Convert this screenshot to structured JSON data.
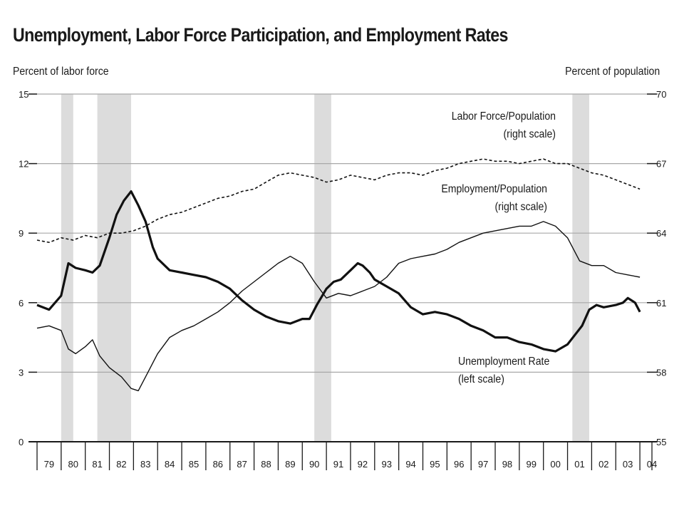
{
  "chart_data": {
    "type": "line",
    "title": "Unemployment, Labor Force Participation, and Employment Rates",
    "left_axis": {
      "label": "Percent of labor force",
      "range": [
        0,
        15
      ],
      "ticks": [
        0,
        3,
        6,
        9,
        12,
        15
      ]
    },
    "right_axis": {
      "label": "Percent of population",
      "range": [
        55,
        70
      ],
      "ticks": [
        55,
        58,
        61,
        64,
        67,
        70
      ]
    },
    "x_axis": {
      "range": [
        1979,
        2004.5
      ],
      "ticks": [
        "79",
        "80",
        "81",
        "82",
        "83",
        "84",
        "85",
        "86",
        "87",
        "88",
        "89",
        "90",
        "91",
        "92",
        "93",
        "94",
        "95",
        "96",
        "97",
        "98",
        "99",
        "00",
        "01",
        "02",
        "03",
        "04"
      ]
    },
    "grid": "horizontal",
    "recessions": [
      [
        1980.0,
        1980.5
      ],
      [
        1981.5,
        1982.9
      ],
      [
        1990.5,
        1991.2
      ],
      [
        2001.2,
        2001.9
      ]
    ],
    "annotations": [
      {
        "lines": [
          "Labor Force/Population",
          "(right scale)"
        ]
      },
      {
        "lines": [
          "Employment/Population",
          "(right scale)"
        ]
      },
      {
        "lines": [
          "Unemployment Rate",
          "(left scale)"
        ]
      }
    ],
    "series": [
      {
        "name": "Unemployment Rate",
        "axis": "left",
        "style": "thick",
        "x": [
          1979.0,
          1979.5,
          1980.0,
          1980.3,
          1980.6,
          1981.0,
          1981.3,
          1981.6,
          1982.0,
          1982.3,
          1982.6,
          1982.9,
          1983.2,
          1983.5,
          1983.8,
          1984.0,
          1984.5,
          1985.0,
          1985.5,
          1986.0,
          1986.5,
          1987.0,
          1987.5,
          1988.0,
          1988.5,
          1989.0,
          1989.5,
          1990.0,
          1990.3,
          1990.6,
          1991.0,
          1991.3,
          1991.6,
          1992.0,
          1992.3,
          1992.5,
          1992.8,
          1993.0,
          1993.5,
          1994.0,
          1994.5,
          1995.0,
          1995.5,
          1996.0,
          1996.5,
          1997.0,
          1997.5,
          1998.0,
          1998.5,
          1999.0,
          1999.5,
          2000.0,
          2000.5,
          2001.0,
          2001.3,
          2001.6,
          2001.9,
          2002.2,
          2002.5,
          2003.0,
          2003.3,
          2003.5,
          2003.8,
          2004.0
        ],
        "values": [
          5.9,
          5.7,
          6.3,
          7.7,
          7.5,
          7.4,
          7.3,
          7.6,
          8.8,
          9.8,
          10.4,
          10.8,
          10.2,
          9.5,
          8.4,
          7.9,
          7.4,
          7.3,
          7.2,
          7.1,
          6.9,
          6.6,
          6.1,
          5.7,
          5.4,
          5.2,
          5.1,
          5.3,
          5.3,
          5.9,
          6.6,
          6.9,
          7.0,
          7.4,
          7.7,
          7.6,
          7.3,
          7.0,
          6.7,
          6.4,
          5.8,
          5.5,
          5.6,
          5.5,
          5.3,
          5.0,
          4.8,
          4.5,
          4.5,
          4.3,
          4.2,
          4.0,
          3.9,
          4.2,
          4.6,
          5.0,
          5.7,
          5.9,
          5.8,
          5.9,
          6.0,
          6.2,
          6.0,
          5.6
        ]
      },
      {
        "name": "Labor Force/Population",
        "axis": "right",
        "style": "dashed",
        "x": [
          1979.0,
          1979.5,
          1980.0,
          1980.5,
          1981.0,
          1981.5,
          1982.0,
          1982.5,
          1983.0,
          1983.5,
          1984.0,
          1984.5,
          1985.0,
          1985.5,
          1986.0,
          1986.5,
          1987.0,
          1987.5,
          1988.0,
          1988.5,
          1989.0,
          1989.5,
          1990.0,
          1990.5,
          1991.0,
          1991.5,
          1992.0,
          1992.5,
          1993.0,
          1993.5,
          1994.0,
          1994.5,
          1995.0,
          1995.5,
          1996.0,
          1996.5,
          1997.0,
          1997.5,
          1998.0,
          1998.5,
          1999.0,
          1999.5,
          2000.0,
          2000.5,
          2001.0,
          2001.5,
          2002.0,
          2002.5,
          2003.0,
          2003.5,
          2004.0
        ],
        "values": [
          63.7,
          63.6,
          63.8,
          63.7,
          63.9,
          63.8,
          64.0,
          64.0,
          64.1,
          64.3,
          64.6,
          64.8,
          64.9,
          65.1,
          65.3,
          65.5,
          65.6,
          65.8,
          65.9,
          66.2,
          66.5,
          66.6,
          66.5,
          66.4,
          66.2,
          66.3,
          66.5,
          66.4,
          66.3,
          66.5,
          66.6,
          66.6,
          66.5,
          66.7,
          66.8,
          67.0,
          67.1,
          67.2,
          67.1,
          67.1,
          67.0,
          67.1,
          67.2,
          67.0,
          67.0,
          66.8,
          66.6,
          66.5,
          66.3,
          66.1,
          65.9
        ]
      },
      {
        "name": "Employment/Population",
        "axis": "right",
        "style": "thin",
        "x": [
          1979.0,
          1979.5,
          1980.0,
          1980.3,
          1980.6,
          1981.0,
          1981.3,
          1981.6,
          1982.0,
          1982.5,
          1982.9,
          1983.2,
          1983.5,
          1984.0,
          1984.5,
          1985.0,
          1985.5,
          1986.0,
          1986.5,
          1987.0,
          1987.5,
          1988.0,
          1988.5,
          1989.0,
          1989.5,
          1990.0,
          1990.5,
          1991.0,
          1991.5,
          1992.0,
          1992.5,
          1993.0,
          1993.5,
          1994.0,
          1994.5,
          1995.0,
          1995.5,
          1996.0,
          1996.5,
          1997.0,
          1997.5,
          1998.0,
          1998.5,
          1999.0,
          1999.5,
          2000.0,
          2000.5,
          2001.0,
          2001.5,
          2002.0,
          2002.5,
          2003.0,
          2003.5,
          2004.0
        ],
        "values": [
          59.9,
          60.0,
          59.8,
          59.0,
          58.8,
          59.1,
          59.4,
          58.7,
          58.2,
          57.8,
          57.3,
          57.2,
          57.8,
          58.8,
          59.5,
          59.8,
          60.0,
          60.3,
          60.6,
          61.0,
          61.5,
          61.9,
          62.3,
          62.7,
          63.0,
          62.7,
          61.9,
          61.2,
          61.4,
          61.3,
          61.5,
          61.7,
          62.1,
          62.7,
          62.9,
          63.0,
          63.1,
          63.3,
          63.6,
          63.8,
          64.0,
          64.1,
          64.2,
          64.3,
          64.3,
          64.5,
          64.3,
          63.8,
          62.8,
          62.6,
          62.6,
          62.3,
          62.2,
          62.1
        ]
      }
    ]
  }
}
